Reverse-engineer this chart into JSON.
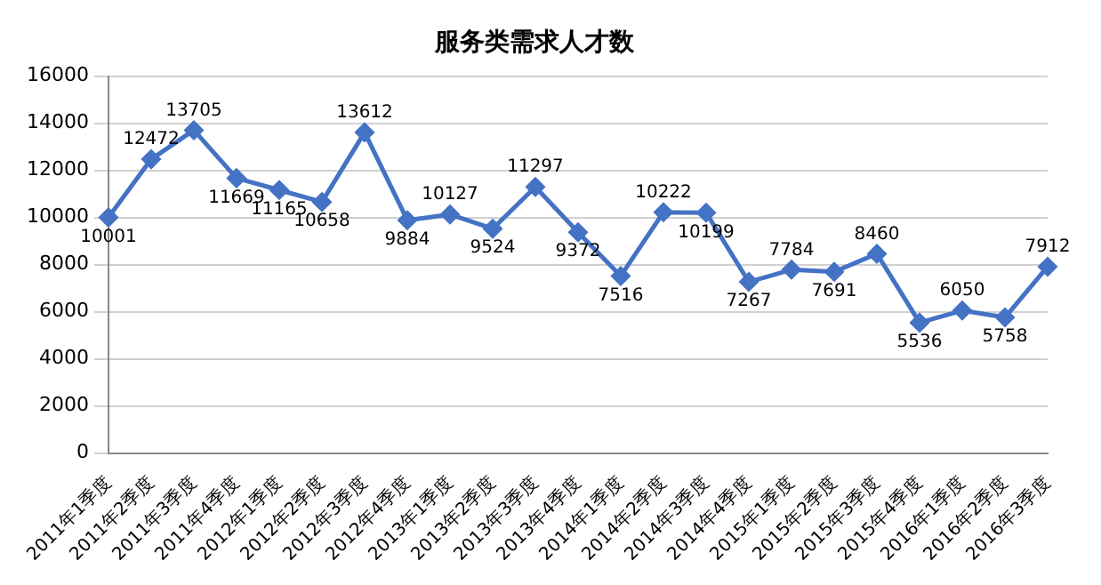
{
  "chart_data": {
    "type": "line",
    "title": "服务类需求人才数",
    "categories": [
      "2011年1季度",
      "2011年2季度",
      "2011年3季度",
      "2011年4季度",
      "2012年1季度",
      "2012年2季度",
      "2012年3季度",
      "2012年4季度",
      "2013年1季度",
      "2013年2季度",
      "2013年3季度",
      "2013年4季度",
      "2014年1季度",
      "2014年2季度",
      "2014年3季度",
      "2014年4季度",
      "2015年1季度",
      "2015年2季度",
      "2015年3季度",
      "2015年4季度",
      "2016年1季度",
      "2016年2季度",
      "2016年3季度"
    ],
    "series": [
      {
        "color": "#4472c4",
        "values": [
          10001,
          12472,
          13705,
          11669,
          11165,
          10658,
          13612,
          9884,
          10127,
          9524,
          11297,
          9372,
          7516,
          10222,
          10199,
          7267,
          7784,
          7691,
          8460,
          5536,
          6050,
          5758,
          7912
        ]
      }
    ],
    "ylim": [
      0,
      16000
    ],
    "yticks": [
      0,
      2000,
      4000,
      6000,
      8000,
      10000,
      12000,
      14000,
      16000
    ],
    "grid": "y",
    "legend": false,
    "marker": "diamond",
    "line_style": "solid",
    "data_labels": true
  }
}
